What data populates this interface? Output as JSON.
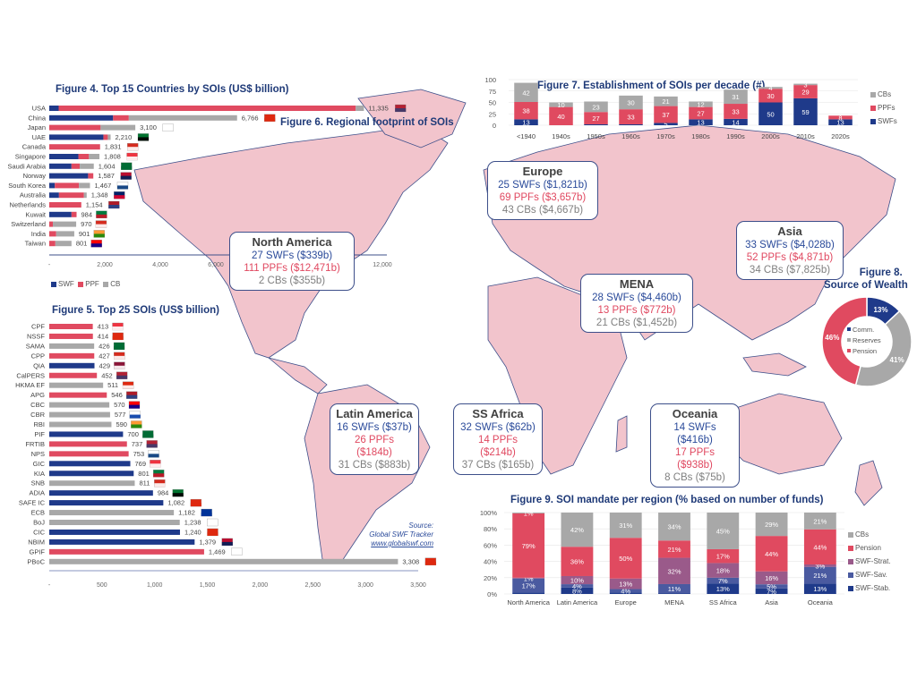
{
  "colors": {
    "swf": "#1f3a8a",
    "ppf": "#e04a60",
    "cb": "#a8a8a8",
    "strat": "#9a5a8a",
    "sav": "#4a5aa0",
    "stab": "#1f3a8a",
    "title": "#1f3a78",
    "land": "#f2c4cc",
    "coast": "#3d4f8a"
  },
  "map": {
    "title": "Figure 6. Regional footprint of SOIs",
    "regions": [
      {
        "name": "North America",
        "swf": "27 SWFs ($339b)",
        "ppf": "111 PPFs ($12,471b)",
        "cb": "2 CBs ($355b)"
      },
      {
        "name": "Europe",
        "swf": "25 SWFs ($1,821b)",
        "ppf": "69 PPFs ($3,657b)",
        "cb": "43 CBs ($4,667b)"
      },
      {
        "name": "Asia",
        "swf": "33 SWFs ($4,028b)",
        "ppf": "52 PPFs ($4,871b)",
        "cb": "34 CBs ($7,825b)"
      },
      {
        "name": "MENA",
        "swf": "28 SWFs ($4,460b)",
        "ppf": "13 PPFs ($772b)",
        "cb": "21 CBs ($1,452b)"
      },
      {
        "name": "Latin America",
        "swf": "16 SWFs ($37b)",
        "ppf": "26 PPFs ($184b)",
        "cb": "31 CBs ($883b)"
      },
      {
        "name": "SS Africa",
        "swf": "32 SWFs ($62b)",
        "ppf": "14 PPFs ($214b)",
        "cb": "37 CBs ($165b)"
      },
      {
        "name": "Oceania",
        "swf": "14 SWFs ($416b)",
        "ppf": "17 PPFs ($938b)",
        "cb": "8 CBs ($75b)"
      }
    ],
    "source": {
      "line1": "Source:",
      "line2": "Global SWF Tracker",
      "link": "www.globalswf.com"
    }
  },
  "chart_data": [
    {
      "id": "fig4",
      "type": "bar",
      "orientation": "horizontal",
      "stacked": true,
      "title": "Figure 4. Top 15 Countries by SOIs (US$ billion)",
      "categories": [
        "USA",
        "China",
        "Japan",
        "UAE",
        "Canada",
        "Singapore",
        "Saudi Arabia",
        "Norway",
        "South Korea",
        "Australia",
        "Netherlands",
        "Kuwait",
        "Switzerland",
        "India",
        "Taiwan"
      ],
      "totals": [
        "11,335",
        "6,766",
        "3,100",
        "2,210",
        "1,831",
        "1,808",
        "1,604",
        "1,587",
        "1,467",
        "1,348",
        "1,154",
        "984",
        "970",
        "901",
        "801"
      ],
      "series": [
        {
          "name": "SWF",
          "values": [
            339,
            2300,
            0,
            1950,
            0,
            1050,
            800,
            1400,
            200,
            350,
            0,
            800,
            0,
            0,
            0
          ]
        },
        {
          "name": "PPF",
          "values": [
            10700,
            566,
            1850,
            160,
            1831,
            380,
            300,
            187,
            870,
            900,
            1154,
            184,
            130,
            250,
            220
          ]
        },
        {
          "name": "CB",
          "values": [
            296,
            3900,
            1250,
            100,
            0,
            378,
            504,
            0,
            397,
            98,
            0,
            0,
            840,
            651,
            581
          ]
        }
      ],
      "flags": [
        "US",
        "CN",
        "JP",
        "AE",
        "CA",
        "SG",
        "SA",
        "NO",
        "KR",
        "AU",
        "NL",
        "KW",
        "CH",
        "IN",
        "TW"
      ],
      "xticks": [
        "-",
        "2,000",
        "4,000",
        "6,000",
        "8,000",
        "10,000",
        "12,000"
      ],
      "xlim": [
        0,
        12000
      ],
      "legend": [
        "SWF",
        "PPF",
        "CB"
      ]
    },
    {
      "id": "fig5",
      "type": "bar",
      "orientation": "horizontal",
      "title": "Figure 5. Top 25 SOIs (US$ billion)",
      "categories": [
        "CPF",
        "NSSF",
        "SAMA",
        "CPP",
        "QIA",
        "CalPERS",
        "HKMA EF",
        "APG",
        "CBC",
        "CBR",
        "RBI",
        "PIF",
        "FRTIB",
        "NPS",
        "GIC",
        "KIA",
        "SNB",
        "ADIA",
        "SAFE IC",
        "ECB",
        "BoJ",
        "CIC",
        "NBIM",
        "GPIF",
        "PBoC"
      ],
      "values": [
        413,
        414,
        426,
        427,
        429,
        452,
        511,
        546,
        570,
        577,
        590,
        700,
        737,
        753,
        769,
        801,
        811,
        984,
        1082,
        1182,
        1238,
        1240,
        1379,
        1469,
        3308
      ],
      "labels": [
        "413",
        "414",
        "426",
        "427",
        "429",
        "452",
        "511",
        "546",
        "570",
        "577",
        "590",
        "700",
        "737",
        "753",
        "769",
        "801",
        "811",
        "984",
        "1,082",
        "1,182",
        "1,238",
        "1,240",
        "1,379",
        "1,469",
        "3,308"
      ],
      "types": [
        "PPF",
        "PPF",
        "CB",
        "PPF",
        "SWF",
        "PPF",
        "CB",
        "PPF",
        "CB",
        "CB",
        "CB",
        "SWF",
        "PPF",
        "PPF",
        "SWF",
        "SWF",
        "CB",
        "SWF",
        "SWF",
        "CB",
        "CB",
        "SWF",
        "SWF",
        "PPF",
        "CB"
      ],
      "flags": [
        "SG",
        "CN",
        "SA",
        "CA",
        "QA",
        "US",
        "HK",
        "NL",
        "TW",
        "RU",
        "IN",
        "SA",
        "US",
        "KR",
        "SG",
        "KW",
        "CH",
        "AE",
        "CN",
        "EU",
        "JP",
        "CN",
        "NO",
        "JP",
        "CN"
      ],
      "xticks": [
        "-",
        "500",
        "1,000",
        "1,500",
        "2,000",
        "2,500",
        "3,000",
        "3,500"
      ],
      "xlim": [
        0,
        3500
      ]
    },
    {
      "id": "fig7",
      "type": "bar",
      "stacked": true,
      "title": "Figure 7. Establishment of SOIs per decade (#)",
      "categories": [
        "<1940",
        "1940s",
        "1950s",
        "1960s",
        "1970s",
        "1980s",
        "1990s",
        "2000s",
        "2010s",
        "2020s"
      ],
      "series": [
        {
          "name": "SWFs",
          "values": [
            13,
            0,
            2,
            2,
            5,
            13,
            14,
            50,
            59,
            13
          ]
        },
        {
          "name": "PPFs",
          "values": [
            38,
            40,
            27,
            33,
            37,
            27,
            33,
            30,
            29,
            8
          ]
        },
        {
          "name": "CBs",
          "values": [
            42,
            10,
            23,
            30,
            21,
            12,
            31,
            4,
            3,
            0
          ]
        }
      ],
      "yticks": [
        "0",
        "25",
        "50",
        "75",
        "100"
      ],
      "ylim": [
        0,
        100
      ],
      "legend": [
        "CBs",
        "PPFs",
        "SWFs"
      ]
    },
    {
      "id": "fig8",
      "type": "pie",
      "donut": true,
      "title": "Figure 8. Source of Wealth",
      "labels": [
        "Comm.",
        "Reserves",
        "Pension"
      ],
      "values": [
        13,
        41,
        46
      ],
      "value_labels": [
        "13%",
        "41%",
        "46%"
      ]
    },
    {
      "id": "fig9",
      "type": "bar",
      "stacked": true,
      "percent": true,
      "title": "Figure 9. SOI mandate per region (% based on number of funds)",
      "categories": [
        "North America",
        "Latin America",
        "Europe",
        "MENA",
        "SS Africa",
        "Asia",
        "Oceania"
      ],
      "series": [
        {
          "name": "SWF-Stab.",
          "values": [
            2,
            8,
            2,
            1,
            13,
            7,
            13
          ],
          "labels": [
            "",
            "8%",
            "",
            "",
            "13%",
            "7%",
            "13%"
          ]
        },
        {
          "name": "SWF-Sav.",
          "values": [
            17,
            4,
            4,
            11,
            7,
            5,
            21
          ],
          "labels": [
            "17%",
            "4%",
            "4%",
            "11%",
            "7%",
            "5%",
            "21%"
          ]
        },
        {
          "name": "SWF-Strat.",
          "values": [
            1,
            10,
            13,
            32,
            18,
            16,
            3
          ],
          "labels": [
            "1%",
            "10%",
            "13%",
            "32%",
            "18%",
            "16%",
            "3%"
          ]
        },
        {
          "name": "Pension",
          "values": [
            79,
            36,
            50,
            21,
            17,
            44,
            44
          ],
          "labels": [
            "79%",
            "36%",
            "50%",
            "21%",
            "17%",
            "44%",
            "44%"
          ]
        },
        {
          "name": "CBs",
          "values": [
            1,
            42,
            31,
            34,
            45,
            29,
            21
          ],
          "labels": [
            "1%",
            "42%",
            "31%",
            "34%",
            "45%",
            "29%",
            "21%"
          ]
        }
      ],
      "yticks": [
        "0%",
        "20%",
        "40%",
        "60%",
        "80%",
        "100%"
      ],
      "ylim": [
        0,
        100
      ],
      "legend": [
        "CBs",
        "Pension",
        "SWF-Strat.",
        "SWF-Sav.",
        "SWF-Stab."
      ]
    }
  ]
}
